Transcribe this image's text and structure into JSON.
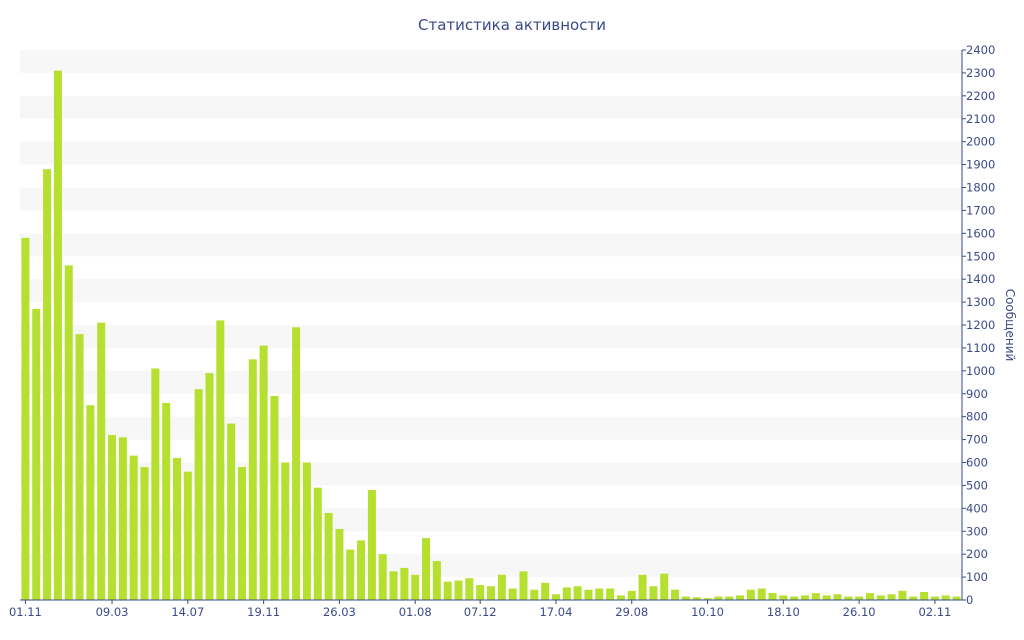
{
  "chart_data": {
    "type": "bar",
    "title": "Статистика активности",
    "ylabel": "Сообщений",
    "xlabel": "",
    "ylim": [
      0,
      2400
    ],
    "ytick_step": 100,
    "yaxis_position": "right",
    "grid": "alternating horizontal bands",
    "legend": "none",
    "x_tick_labels": [
      {
        "index": 0,
        "label": "01.11"
      },
      {
        "index": 8,
        "label": "09.03"
      },
      {
        "index": 15,
        "label": "14.07"
      },
      {
        "index": 22,
        "label": "19.11"
      },
      {
        "index": 29,
        "label": "26.03"
      },
      {
        "index": 36,
        "label": "01.08"
      },
      {
        "index": 42,
        "label": "07.12"
      },
      {
        "index": 49,
        "label": "17.04"
      },
      {
        "index": 56,
        "label": "29.08"
      },
      {
        "index": 63,
        "label": "10.10"
      },
      {
        "index": 70,
        "label": "18.10"
      },
      {
        "index": 77,
        "label": "26.10"
      },
      {
        "index": 84,
        "label": "02.11"
      }
    ],
    "values": [
      1580,
      1270,
      1880,
      2310,
      1460,
      1160,
      850,
      1210,
      720,
      710,
      630,
      580,
      1010,
      860,
      620,
      560,
      920,
      990,
      1220,
      770,
      580,
      1050,
      1110,
      890,
      600,
      1190,
      600,
      490,
      380,
      310,
      220,
      260,
      480,
      200,
      125,
      140,
      110,
      270,
      170,
      80,
      85,
      95,
      65,
      60,
      110,
      50,
      125,
      45,
      75,
      25,
      55,
      60,
      45,
      50,
      50,
      20,
      40,
      110,
      60,
      115,
      45,
      15,
      12,
      8,
      15,
      15,
      20,
      45,
      50,
      30,
      20,
      15,
      20,
      30,
      20,
      25,
      15,
      15,
      30,
      20,
      25,
      40,
      15,
      35,
      15,
      20,
      15
    ],
    "colors": {
      "bar": "#b5e02f",
      "axis": "#3a4a8a",
      "band": "#f7f7f7"
    }
  }
}
